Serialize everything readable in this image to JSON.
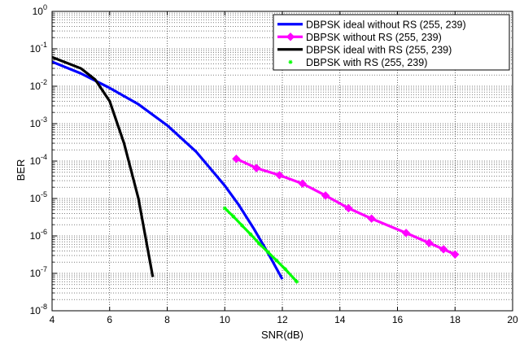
{
  "chart_data": {
    "type": "line",
    "xlabel": "SNR(dB)",
    "ylabel": "BER",
    "xlim": [
      4,
      20
    ],
    "ylim": [
      1e-08,
      1
    ],
    "yscale": "log",
    "grid": true,
    "legend_position": "top-right",
    "x_ticks": [
      "4",
      "6",
      "8",
      "10",
      "12",
      "14",
      "16",
      "18",
      "20"
    ],
    "y_ticks": [
      {
        "base": "10",
        "exp": "-8"
      },
      {
        "base": "10",
        "exp": "-7"
      },
      {
        "base": "10",
        "exp": "-6"
      },
      {
        "base": "10",
        "exp": "-5"
      },
      {
        "base": "10",
        "exp": "-4"
      },
      {
        "base": "10",
        "exp": "-3"
      },
      {
        "base": "10",
        "exp": "-2"
      },
      {
        "base": "10",
        "exp": "-1"
      },
      {
        "base": "10",
        "exp": "0"
      }
    ],
    "series": [
      {
        "name": "DBPSK ideal without RS (255, 239)",
        "color": "#0000ff",
        "style": "line",
        "x": [
          4,
          5,
          6,
          7,
          8,
          9,
          10,
          10.5,
          11,
          11.5,
          12
        ],
        "y": [
          0.045,
          0.022,
          0.009,
          0.0033,
          0.0009,
          0.00018,
          2.21e-05,
          6.5e-06,
          1.6e-06,
          3.5e-07,
          7e-08
        ]
      },
      {
        "name": "DBPSK without RS (255, 239)",
        "color": "#ff00ff",
        "style": "line-diamond",
        "x": [
          10.4,
          11.1,
          11.9,
          12.7,
          13.5,
          14.3,
          15.1,
          16.3,
          17.1,
          17.6,
          18
        ],
        "y": [
          0.000115,
          6.5e-05,
          4.2e-05,
          2.5e-05,
          1.2e-05,
          5.5e-06,
          2.9e-06,
          1.2e-06,
          6.5e-07,
          4.4e-07,
          3.2e-07
        ]
      },
      {
        "name": "DBPSK ideal with RS (255, 239)",
        "color": "#000000",
        "style": "line",
        "x": [
          4,
          5,
          5.5,
          6,
          6.5,
          7,
          7.5
        ],
        "y": [
          0.06,
          0.03,
          0.015,
          0.004,
          0.0003,
          1e-05,
          8e-08
        ]
      },
      {
        "name": "DBPSK with RS (255, 239)",
        "color": "#00ff00",
        "style": "star",
        "x": [
          10,
          10.3,
          10.6,
          10.9,
          11.2,
          11.5,
          11.8,
          12.1,
          12.5
        ],
        "y": [
          5.5e-06,
          3.3e-06,
          1.9e-06,
          1.1e-06,
          6.2e-07,
          3.7e-07,
          2.2e-07,
          1.3e-07,
          6e-08
        ]
      }
    ]
  }
}
